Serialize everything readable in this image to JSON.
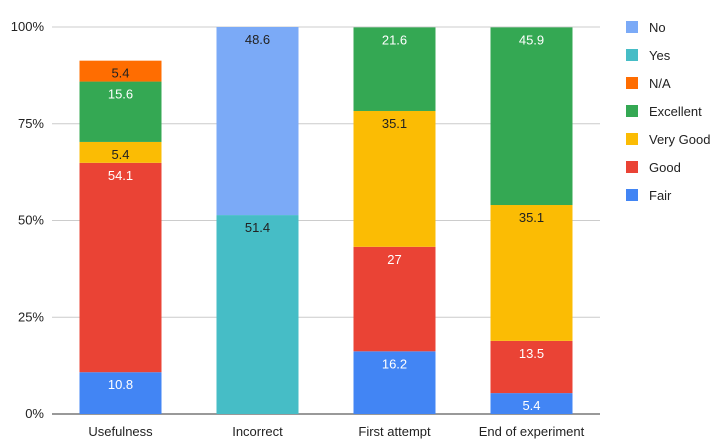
{
  "chart_data": {
    "type": "bar",
    "stacked": true,
    "percent": true,
    "categories": [
      "Usefulness",
      "Incorrect",
      "First attempt",
      "End of experiment"
    ],
    "y_ticks": [
      "0%",
      "25%",
      "50%",
      "75%",
      "100%"
    ],
    "ylim": [
      0,
      100
    ],
    "grid": true,
    "legend_position": "right",
    "series": [
      {
        "name": "Fair",
        "color": "#4285F4",
        "values": [
          10.8,
          null,
          16.2,
          5.4
        ],
        "labels": [
          "10.8",
          "",
          "16.2",
          "5.4"
        ]
      },
      {
        "name": "Good",
        "color": "#EA4335",
        "values": [
          54.1,
          null,
          27,
          13.5
        ],
        "labels": [
          "54.1",
          "",
          "27",
          "13.5"
        ]
      },
      {
        "name": "Very Good",
        "color": "#FBBC04",
        "values": [
          5.4,
          null,
          35.1,
          35.1
        ],
        "labels": [
          "5.4",
          "",
          "35.1",
          "35.1"
        ]
      },
      {
        "name": "Excellent",
        "color": "#34A853",
        "values": [
          15.6,
          null,
          21.6,
          45.9
        ],
        "labels": [
          "15.6",
          "",
          "21.6",
          "45.9"
        ]
      },
      {
        "name": "N/A",
        "color": "#FF6D01",
        "values": [
          5.4,
          null,
          null,
          null
        ],
        "labels": [
          "5.4",
          "",
          "",
          ""
        ]
      },
      {
        "name": "Yes",
        "color": "#46BDC6",
        "values": [
          null,
          51.4,
          null,
          null
        ],
        "labels": [
          "",
          "51.4",
          "",
          ""
        ]
      },
      {
        "name": "No",
        "color": "#7BAAF7",
        "values": [
          null,
          48.6,
          null,
          null
        ],
        "labels": [
          "",
          "48.6",
          "",
          ""
        ]
      }
    ],
    "legend_order": [
      "No",
      "Yes",
      "N/A",
      "Excellent",
      "Very Good",
      "Good",
      "Fair"
    ]
  }
}
